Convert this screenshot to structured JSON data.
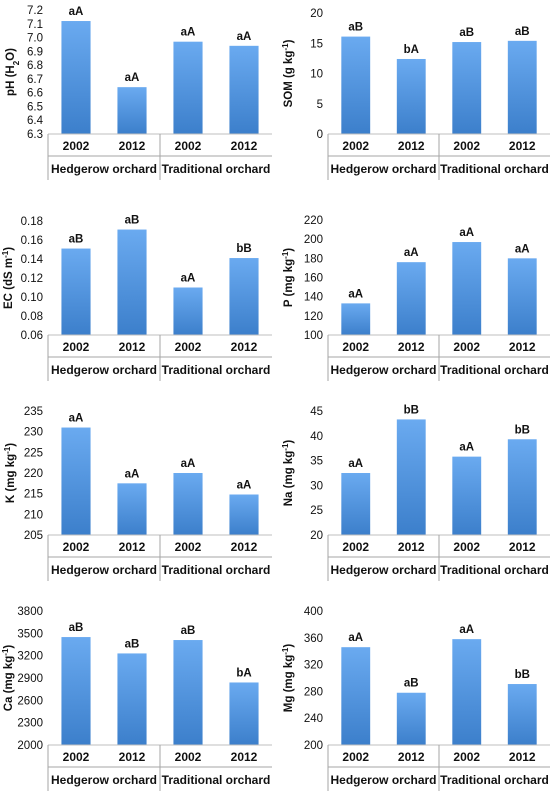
{
  "chart_data": [
    {
      "type": "bar",
      "ylabel": "pH (H",
      "ylabel_sub": "2",
      "ylabel_end": "O)",
      "categories": [
        "2002",
        "2012",
        "2002",
        "2012"
      ],
      "groups": [
        "Hedgerow orchard",
        "Traditional orchard"
      ],
      "values": [
        7.12,
        6.64,
        6.97,
        6.94
      ],
      "labels": [
        "aA",
        "aA",
        "aA",
        "aA"
      ],
      "ylim": [
        6.3,
        7.2
      ],
      "ticks": [
        "6.3",
        "6.4",
        "6.5",
        "6.6",
        "6.7",
        "6.8",
        "6.9",
        "7.0",
        "7.1",
        "7.2"
      ],
      "color": "#5b9bd5"
    },
    {
      "type": "bar",
      "ylabel": "SOM (g kg",
      "ylabel_sup": "-1",
      "ylabel_end": ")",
      "categories": [
        "2002",
        "2012",
        "2002",
        "2012"
      ],
      "groups": [
        "Hedgerow orchard",
        "Traditional orchard"
      ],
      "values": [
        16.1,
        12.4,
        15.2,
        15.4
      ],
      "labels": [
        "aB",
        "bA",
        "aB",
        "aB"
      ],
      "ylim": [
        0,
        20
      ],
      "ticks": [
        "0",
        "5",
        "10",
        "15",
        "20"
      ],
      "color": "#5b9bd5"
    },
    {
      "type": "bar",
      "ylabel": "EC (dS m",
      "ylabel_sup": "-1",
      "ylabel_end": ")",
      "categories": [
        "2002",
        "2012",
        "2002",
        "2012"
      ],
      "groups": [
        "Hedgerow orchard",
        "Traditional orchard"
      ],
      "values": [
        0.151,
        0.171,
        0.11,
        0.141
      ],
      "labels": [
        "aB",
        "aB",
        "aA",
        "bB"
      ],
      "ylim": [
        0.06,
        0.18
      ],
      "ticks": [
        "0.06",
        "0.08",
        "0.10",
        "0.12",
        "0.14",
        "0.16",
        "0.18"
      ],
      "color": "#5b9bd5"
    },
    {
      "type": "bar",
      "ylabel": "P (mg kg",
      "ylabel_sup": "-1",
      "ylabel_end": ")",
      "categories": [
        "2002",
        "2012",
        "2002",
        "2012"
      ],
      "groups": [
        "Hedgerow orchard",
        "Traditional orchard"
      ],
      "values": [
        133,
        176,
        197,
        180
      ],
      "labels": [
        "aA",
        "aA",
        "aA",
        "aA"
      ],
      "ylim": [
        100,
        220
      ],
      "ticks": [
        "100",
        "120",
        "140",
        "160",
        "180",
        "200",
        "220"
      ],
      "color": "#5b9bd5"
    },
    {
      "type": "bar",
      "ylabel": "K (mg kg",
      "ylabel_sup": "-1",
      "ylabel_end": ")",
      "categories": [
        "2002",
        "2012",
        "2002",
        "2012"
      ],
      "groups": [
        "Hedgerow orchard",
        "Traditional orchard"
      ],
      "values": [
        231,
        217.5,
        220,
        214.8
      ],
      "labels": [
        "aA",
        "aA",
        "aA",
        "aA"
      ],
      "ylim": [
        205,
        235
      ],
      "ticks": [
        "205",
        "210",
        "215",
        "220",
        "225",
        "230",
        "235"
      ],
      "color": "#5b9bd5"
    },
    {
      "type": "bar",
      "ylabel": "Na (mg kg",
      "ylabel_sup": "-1",
      "ylabel_end": ")",
      "categories": [
        "2002",
        "2012",
        "2002",
        "2012"
      ],
      "groups": [
        "Hedgerow orchard",
        "Traditional orchard"
      ],
      "values": [
        32.5,
        43.3,
        35.8,
        39.3
      ],
      "labels": [
        "aA",
        "bB",
        "aA",
        "bB"
      ],
      "ylim": [
        20,
        45
      ],
      "ticks": [
        "20",
        "25",
        "30",
        "35",
        "40",
        "45"
      ],
      "color": "#5b9bd5"
    },
    {
      "type": "bar",
      "ylabel": "Ca (mg kg",
      "ylabel_sup": "-1",
      "ylabel_end": ")",
      "categories": [
        "2002",
        "2012",
        "2002",
        "2012"
      ],
      "groups": [
        "Hedgerow orchard",
        "Traditional orchard"
      ],
      "values": [
        3450,
        3230,
        3410,
        2840
      ],
      "labels": [
        "aB",
        "aB",
        "aB",
        "bA"
      ],
      "ylim": [
        2000,
        3800
      ],
      "ticks": [
        "2000",
        "2300",
        "2600",
        "2900",
        "3200",
        "3500",
        "3800"
      ],
      "color": "#5b9bd5"
    },
    {
      "type": "bar",
      "ylabel": "Mg (mg kg",
      "ylabel_sup": "-1",
      "ylabel_end": ")",
      "categories": [
        "2002",
        "2012",
        "2002",
        "2012"
      ],
      "groups": [
        "Hedgerow orchard",
        "Traditional orchard"
      ],
      "values": [
        346,
        278,
        358,
        291
      ],
      "labels": [
        "aA",
        "aB",
        "aA",
        "bB"
      ],
      "ylim": [
        200,
        400
      ],
      "ticks": [
        "200",
        "240",
        "280",
        "320",
        "360",
        "400"
      ],
      "color": "#5b9bd5"
    }
  ]
}
